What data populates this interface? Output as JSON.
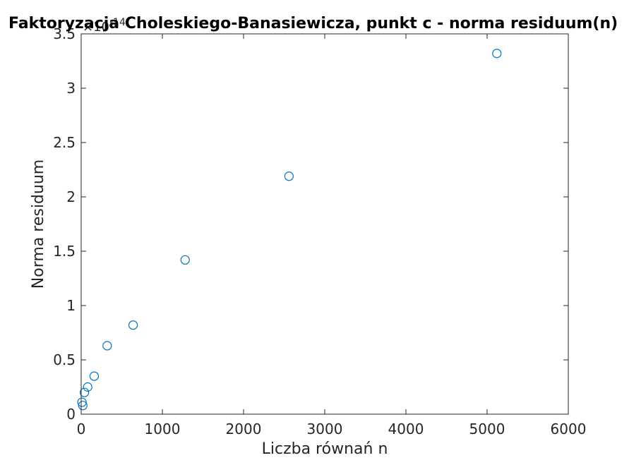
{
  "chart_data": {
    "type": "scatter",
    "title": "Faktoryzacja Choleskiego-Banasiewicza, punkt c - norma residuum(n)",
    "xlabel": "Liczba równań n",
    "ylabel": "Norma residuum",
    "y_exponent_base": "×10",
    "y_exponent_power": "-14",
    "xlim": [
      0,
      6000
    ],
    "ylim": [
      0,
      3.5
    ],
    "xticks": [
      0,
      1000,
      2000,
      3000,
      4000,
      5000,
      6000
    ],
    "xtick_labels": [
      "0",
      "1000",
      "2000",
      "3000",
      "4000",
      "5000",
      "6000"
    ],
    "yticks": [
      0,
      0.5,
      1,
      1.5,
      2,
      2.5,
      3,
      3.5
    ],
    "ytick_labels": [
      "0",
      "0.5",
      "1",
      "1.5",
      "2",
      "2.5",
      "3",
      "3.5"
    ],
    "marker": "circle-open",
    "marker_color": "#0072BD",
    "axis_color": "#262626",
    "grid": false,
    "legend": false,
    "series": [
      {
        "x": [
          10,
          20,
          40,
          80,
          160,
          320,
          640,
          1280,
          2560,
          5120
        ],
        "y": [
          0.11,
          0.08,
          0.2,
          0.25,
          0.35,
          0.63,
          0.82,
          1.42,
          2.19,
          3.32
        ]
      }
    ]
  }
}
